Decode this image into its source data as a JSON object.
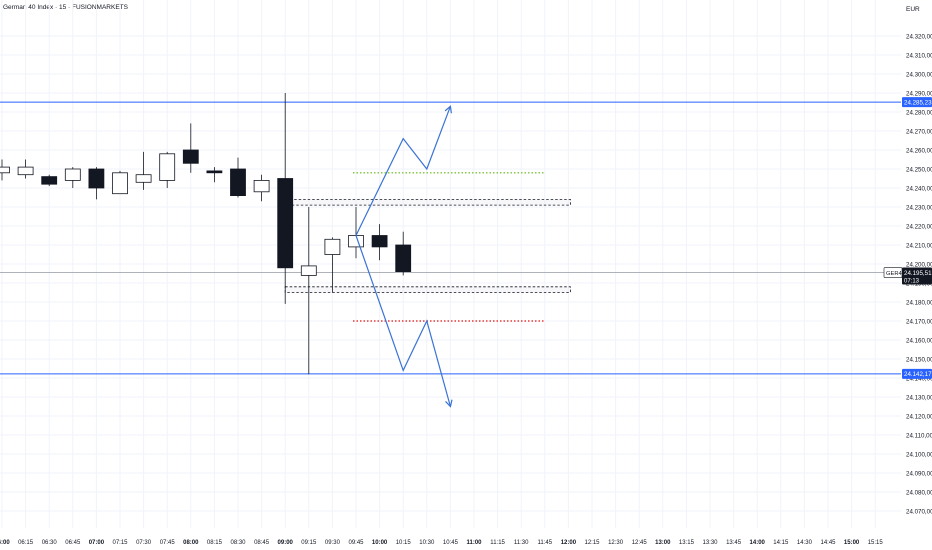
{
  "header": {
    "title": "German 40 Index · 15 · FUSIONMARKETS",
    "currency": "EUR"
  },
  "colors": {
    "grid": "#f0f3fa",
    "axis_text": "#131722",
    "candle_down": "#131722",
    "candle_up_fill": "#ffffff",
    "level_line": "#2962ff",
    "arrow": "#3a73d6",
    "green_dotted": "#7cc43a",
    "red_dotted": "#e53935",
    "price_line": "#9598a1",
    "label_blue_bg": "#2962ff",
    "label_dark_bg": "#131722"
  },
  "chart_data": {
    "type": "candlestick",
    "symbol": "GER40",
    "timeframe": "15",
    "y_ticks": [
      24320,
      24310,
      24300,
      24290,
      24280,
      24270,
      24260,
      24250,
      24240,
      24230,
      24220,
      24210,
      24200,
      24190,
      24180,
      24170,
      24160,
      24150,
      24140,
      24130,
      24120,
      24110,
      24100,
      24090,
      24080,
      24070
    ],
    "y_tick_labels": [
      "24.320,00",
      "24.310,00",
      "24.300,00",
      "24.290,00",
      "24.280,00",
      "24.270,00",
      "24.260,00",
      "24.250,00",
      "24.240,00",
      "24.230,00",
      "24.220,00",
      "24.210,00",
      "24.200,00",
      "24.190,00",
      "24.180,00",
      "24.170,00",
      "24.160,00",
      "24.150,00",
      "24.140,00",
      "24.130,00",
      "24.120,00",
      "24.110,00",
      "24.100,00",
      "24.090,00",
      "24.080,00",
      "24.070,00"
    ],
    "x_labels": [
      {
        "label": "06:00",
        "bold": true
      },
      {
        "label": "06:15",
        "bold": false
      },
      {
        "label": "06:30",
        "bold": false
      },
      {
        "label": "06:45",
        "bold": false
      },
      {
        "label": "07:00",
        "bold": true
      },
      {
        "label": "07:15",
        "bold": false
      },
      {
        "label": "07:30",
        "bold": false
      },
      {
        "label": "07:45",
        "bold": false
      },
      {
        "label": "08:00",
        "bold": true
      },
      {
        "label": "08:15",
        "bold": false
      },
      {
        "label": "08:30",
        "bold": false
      },
      {
        "label": "08:45",
        "bold": false
      },
      {
        "label": "09:00",
        "bold": true
      },
      {
        "label": "09:15",
        "bold": false
      },
      {
        "label": "09:30",
        "bold": false
      },
      {
        "label": "09:45",
        "bold": false
      },
      {
        "label": "10:00",
        "bold": true
      },
      {
        "label": "10:15",
        "bold": false
      },
      {
        "label": "10:30",
        "bold": false
      },
      {
        "label": "10:45",
        "bold": false
      },
      {
        "label": "11:00",
        "bold": true
      },
      {
        "label": "11:15",
        "bold": false
      },
      {
        "label": "11:30",
        "bold": false
      },
      {
        "label": "11:45",
        "bold": false
      },
      {
        "label": "12:00",
        "bold": true
      },
      {
        "label": "12:15",
        "bold": false
      },
      {
        "label": "12:30",
        "bold": false
      },
      {
        "label": "12:45",
        "bold": false
      },
      {
        "label": "13:00",
        "bold": true
      },
      {
        "label": "13:15",
        "bold": false
      },
      {
        "label": "13:30",
        "bold": false
      },
      {
        "label": "13:45",
        "bold": false
      },
      {
        "label": "14:00",
        "bold": true
      },
      {
        "label": "14:15",
        "bold": false
      },
      {
        "label": "14:30",
        "bold": false
      },
      {
        "label": "14:45",
        "bold": false
      },
      {
        "label": "15:00",
        "bold": true
      },
      {
        "label": "15:15",
        "bold": false
      }
    ],
    "candles": [
      {
        "time": "06:00",
        "open": 24248,
        "high": 24255,
        "low": 24244,
        "close": 24251
      },
      {
        "time": "06:15",
        "open": 24247,
        "high": 24255,
        "low": 24245,
        "close": 24251
      },
      {
        "time": "06:30",
        "open": 24246,
        "high": 24247,
        "low": 24241,
        "close": 24242
      },
      {
        "time": "06:45",
        "open": 24244,
        "high": 24251,
        "low": 24240,
        "close": 24250
      },
      {
        "time": "07:00",
        "open": 24250,
        "high": 24251,
        "low": 24234,
        "close": 24240
      },
      {
        "time": "07:15",
        "open": 24237,
        "high": 24249,
        "low": 24237,
        "close": 24248
      },
      {
        "time": "07:30",
        "open": 24243,
        "high": 24259,
        "low": 24239,
        "close": 24247
      },
      {
        "time": "07:45",
        "open": 24244,
        "high": 24259,
        "low": 24240,
        "close": 24258
      },
      {
        "time": "08:00",
        "open": 24260,
        "high": 24274,
        "low": 24248,
        "close": 24253
      },
      {
        "time": "08:15",
        "open": 24249,
        "high": 24251,
        "low": 24243,
        "close": 24248
      },
      {
        "time": "08:30",
        "open": 24250,
        "high": 24256,
        "low": 24235,
        "close": 24236
      },
      {
        "time": "08:45",
        "open": 24238,
        "high": 24247,
        "low": 24233,
        "close": 24244
      },
      {
        "time": "09:00",
        "open": 24245,
        "high": 24290,
        "low": 24179,
        "close": 24198
      },
      {
        "time": "09:15",
        "open": 24194,
        "high": 24230,
        "low": 24142,
        "close": 24199
      },
      {
        "time": "09:30",
        "open": 24205,
        "high": 24214,
        "low": 24185,
        "close": 24213
      },
      {
        "time": "09:45",
        "open": 24209,
        "high": 24230,
        "low": 24203,
        "close": 24215
      },
      {
        "time": "10:00",
        "open": 24215,
        "high": 24221,
        "low": 24202,
        "close": 24209
      },
      {
        "time": "10:15",
        "open": 24210,
        "high": 24217,
        "low": 24194,
        "close": 24196
      }
    ],
    "current_price": 24195.51,
    "current_price_label": "24.195,51",
    "current_symbol_label": "GER40",
    "countdown": "07:13",
    "levels": [
      {
        "name": "upper-level",
        "value": 24285.23,
        "label": "24.285,23"
      },
      {
        "name": "lower-level",
        "value": 24142.17,
        "label": "24.142,17"
      }
    ],
    "zones": [
      {
        "name": "upper-zone",
        "top": 24234,
        "bottom": 24231
      },
      {
        "name": "lower-zone",
        "top": 24188,
        "bottom": 24185
      }
    ],
    "targets": [
      {
        "name": "green-target",
        "value": 24248,
        "color": "green"
      },
      {
        "name": "red-target",
        "value": 24170,
        "color": "red"
      }
    ],
    "projections": [
      {
        "name": "bullish-path",
        "points": [
          [
            "09:45",
            24215
          ],
          [
            "10:15",
            24266
          ],
          [
            "10:30",
            24250
          ],
          [
            "10:45",
            24283
          ]
        ]
      },
      {
        "name": "bearish-path",
        "points": [
          [
            "09:45",
            24215
          ],
          [
            "10:15",
            24144
          ],
          [
            "10:30",
            24170
          ],
          [
            "10:45",
            24125
          ]
        ]
      }
    ]
  }
}
